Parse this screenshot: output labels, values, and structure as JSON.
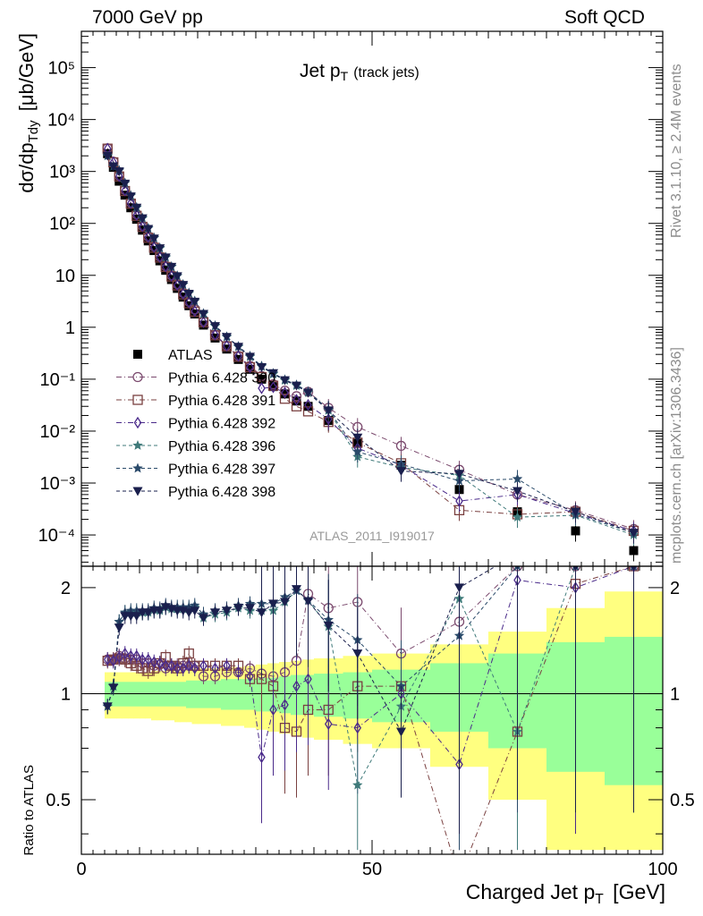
{
  "header": {
    "left": "7000 GeV pp",
    "right": "Soft QCD"
  },
  "side_labels": {
    "rivet": "Rivet 3.1.10, ≥ 2.4M events",
    "mcplots": "mcplots.cern.ch [arXiv:1306.3436]"
  },
  "chart_data": [
    {
      "type": "scatter",
      "title_main": "Jet p",
      "title_sub": "T",
      "title_note": "(track jets)",
      "analysis_label": "ATLAS_2011_I919017",
      "ylabel": "dσ/dp",
      "ylabel_sub": "Tdy",
      "ylabel_unit": "[μb/GeV]",
      "xlabel": "Charged Jet p",
      "xlabel_sub": "T",
      "xlabel_unit": "[GeV]",
      "xlim": [
        0,
        100
      ],
      "ylim": [
        2.5e-05,
        500000
      ],
      "y_scale": "log",
      "y_tick_labels": [
        "10⁻⁴",
        "10⁻³",
        "10⁻²",
        "10⁻¹",
        "1",
        "10",
        "10²",
        "10³",
        "10⁴",
        "10⁵"
      ],
      "x_tick_labels": [
        "0",
        "50",
        "100"
      ],
      "legend_position": "left-middle",
      "x": [
        4.5,
        5.5,
        6.5,
        7.5,
        8.5,
        9.5,
        10.5,
        11.5,
        12.5,
        13.5,
        14.5,
        15.5,
        16.5,
        17.5,
        18.5,
        19.5,
        21,
        23,
        25,
        27,
        29,
        31,
        33,
        35,
        37,
        39,
        42.5,
        47.5,
        55,
        65,
        75,
        85,
        95
      ],
      "series": [
        {
          "name": "ATLAS",
          "color": "#000000",
          "marker": "filled-square",
          "values": [
            2200,
            1200,
            650,
            350,
            200,
            120,
            74,
            46,
            30,
            19,
            12.5,
            8.3,
            5.6,
            3.8,
            2.6,
            1.8,
            1.1,
            0.62,
            0.38,
            0.24,
            0.155,
            0.1,
            0.072,
            0.052,
            0.038,
            0.03,
            0.016,
            0.0058,
            0.0022,
            0.00075,
            0.00028,
            0.00012,
            5e-05
          ]
        },
        {
          "name": "Pythia 6.428 390",
          "color": "#7b4a6e",
          "marker": "open-circle",
          "values": [
            2800,
            1550,
            830,
            440,
            250,
            150,
            90,
            56,
            36,
            23,
            15,
            10,
            6.8,
            4.6,
            3.1,
            2.2,
            1.3,
            0.72,
            0.44,
            0.28,
            0.18,
            0.115,
            0.08,
            0.06,
            0.047,
            0.057,
            0.028,
            0.012,
            0.0052,
            0.0018,
            0.0006,
            0.0003,
            0.00013
          ]
        },
        {
          "name": "Pythia 6.428 391",
          "color": "#7a4040",
          "marker": "open-square",
          "values": [
            2750,
            1500,
            800,
            420,
            240,
            140,
            86,
            53,
            34,
            22,
            14.5,
            9.5,
            6.4,
            4.3,
            2.9,
            2.0,
            1.25,
            0.7,
            0.43,
            0.27,
            0.17,
            0.11,
            0.075,
            0.042,
            0.03,
            0.024,
            0.015,
            0.006,
            0.0024,
            0.0003,
            0.00025,
            0.00028,
            0.00012
          ]
        },
        {
          "name": "Pythia 6.428 392",
          "color": "#4a2a8a",
          "marker": "open-diamond",
          "values": [
            2750,
            1500,
            810,
            430,
            245,
            145,
            88,
            55,
            35,
            22.5,
            14.8,
            9.7,
            6.5,
            4.4,
            3.0,
            2.05,
            1.25,
            0.72,
            0.44,
            0.28,
            0.17,
            0.067,
            0.07,
            0.055,
            0.04,
            0.032,
            0.017,
            0.0047,
            0.0022,
            0.00045,
            0.0006,
            0.00026,
            0.00012
          ]
        },
        {
          "name": "Pythia 6.428 396",
          "color": "#3f7a7a",
          "marker": "star",
          "values": [
            2000,
            1250,
            1050,
            600,
            340,
            200,
            125,
            80,
            52,
            33,
            22,
            14.5,
            9.7,
            6.6,
            4.5,
            3.2,
            1.8,
            1.05,
            0.65,
            0.42,
            0.27,
            0.175,
            0.125,
            0.095,
            0.075,
            0.055,
            0.025,
            0.0032,
            0.002,
            0.0014,
            0.00022,
            0.00024,
            0.0001
          ]
        },
        {
          "name": "Pythia 6.428 397",
          "color": "#2a4a6a",
          "marker": "star",
          "values": [
            2000,
            1250,
            1050,
            600,
            345,
            205,
            128,
            81,
            53,
            34,
            22.5,
            14.8,
            9.8,
            6.7,
            4.6,
            3.2,
            1.85,
            1.08,
            0.66,
            0.43,
            0.28,
            0.18,
            0.13,
            0.098,
            0.078,
            0.058,
            0.026,
            0.004,
            0.0023,
            0.0011,
            0.0012,
            0.00025,
            0.00011
          ]
        },
        {
          "name": "Pythia 6.428 398",
          "color": "#1a1f4d",
          "marker": "filled-triangle-down",
          "values": [
            2000,
            1250,
            1000,
            580,
            330,
            200,
            125,
            78,
            51,
            33,
            22,
            14.5,
            9.6,
            6.5,
            4.4,
            3.1,
            1.8,
            1.05,
            0.65,
            0.42,
            0.27,
            0.17,
            0.13,
            0.095,
            0.075,
            0.055,
            0.025,
            0.0075,
            0.0017,
            0.0015,
            0.0007,
            0.00028,
            0.00011
          ]
        }
      ]
    },
    {
      "type": "line",
      "ylabel": "Ratio to ATLAS",
      "xlim": [
        0,
        100
      ],
      "ylim": [
        0.35,
        2.3
      ],
      "y_scale": "log",
      "y_tick_labels": [
        "0.5",
        "1",
        "2"
      ],
      "x_tick_labels": [
        "0",
        "50",
        "100"
      ],
      "band_x_edges": [
        4,
        5,
        6,
        7,
        8,
        9,
        10,
        11,
        12,
        13,
        14,
        15,
        16,
        17,
        18,
        19,
        20,
        22,
        24,
        26,
        28,
        30,
        32,
        34,
        36,
        38,
        40,
        45,
        50,
        60,
        70,
        80,
        90,
        100
      ],
      "band_inner": [
        0.08,
        0.08,
        0.08,
        0.08,
        0.08,
        0.08,
        0.08,
        0.08,
        0.08,
        0.08,
        0.08,
        0.08,
        0.08,
        0.08,
        0.09,
        0.09,
        0.09,
        0.09,
        0.1,
        0.1,
        0.1,
        0.11,
        0.11,
        0.12,
        0.13,
        0.13,
        0.14,
        0.15,
        0.17,
        0.22,
        0.3,
        0.4,
        0.45
      ],
      "band_outer": [
        0.15,
        0.15,
        0.15,
        0.15,
        0.15,
        0.15,
        0.15,
        0.15,
        0.16,
        0.16,
        0.16,
        0.16,
        0.17,
        0.17,
        0.17,
        0.18,
        0.18,
        0.18,
        0.19,
        0.19,
        0.2,
        0.21,
        0.22,
        0.23,
        0.24,
        0.25,
        0.26,
        0.28,
        0.3,
        0.38,
        0.5,
        0.75,
        0.95
      ],
      "band_colors": {
        "outer": "#ffff80",
        "inner": "#99ff99"
      },
      "x": [
        4.5,
        5.5,
        6.5,
        7.5,
        8.5,
        9.5,
        10.5,
        11.5,
        12.5,
        13.5,
        14.5,
        15.5,
        16.5,
        17.5,
        18.5,
        19.5,
        21,
        23,
        25,
        27,
        29,
        31,
        33,
        35,
        37,
        39,
        42.5,
        47.5,
        55,
        65,
        75,
        85,
        95
      ],
      "series": [
        {
          "name": "Pythia 6.428 390",
          "color": "#7b4a6e",
          "marker": "open-circle",
          "values": [
            1.25,
            1.25,
            1.28,
            1.26,
            1.25,
            1.25,
            1.22,
            1.22,
            1.2,
            1.21,
            1.18,
            1.2,
            1.2,
            1.2,
            1.2,
            1.2,
            1.12,
            1.12,
            1.15,
            1.15,
            1.18,
            1.14,
            1.12,
            1.15,
            1.24,
            1.92,
            1.75,
            1.82,
            1.3,
            1.6,
            2.3,
            2.3,
            2.3
          ]
        },
        {
          "name": "Pythia 6.428 391",
          "color": "#7a4040",
          "marker": "open-square",
          "values": [
            1.24,
            1.25,
            1.26,
            1.25,
            1.22,
            1.2,
            1.18,
            1.16,
            1.18,
            1.22,
            1.27,
            1.2,
            1.18,
            1.22,
            1.3,
            1.2,
            1.2,
            1.2,
            1.2,
            1.2,
            1.1,
            1.1,
            1.05,
            0.8,
            0.78,
            0.9,
            0.9,
            1.05,
            1.05,
            0.3,
            0.78,
            2.05,
            2.3
          ]
        },
        {
          "name": "Pythia 6.428 392",
          "color": "#4a2a8a",
          "marker": "open-diamond",
          "values": [
            1.25,
            1.24,
            1.27,
            1.3,
            1.28,
            1.28,
            1.25,
            1.25,
            1.23,
            1.22,
            1.2,
            1.2,
            1.18,
            1.18,
            1.2,
            1.18,
            1.2,
            1.18,
            1.2,
            1.15,
            1.12,
            0.66,
            0.9,
            0.93,
            1.05,
            1.1,
            0.82,
            0.8,
            1.0,
            0.63,
            2.1,
            2.0,
            2.3
          ]
        },
        {
          "name": "Pythia 6.428 396",
          "color": "#3f7a7a",
          "marker": "star",
          "values": [
            0.92,
            1.05,
            1.6,
            1.7,
            1.7,
            1.7,
            1.7,
            1.7,
            1.73,
            1.72,
            1.76,
            1.74,
            1.74,
            1.74,
            1.74,
            1.76,
            1.64,
            1.68,
            1.7,
            1.75,
            1.72,
            1.72,
            1.72,
            1.82,
            1.96,
            1.84,
            1.55,
            0.55,
            0.92,
            1.86,
            0.78,
            2.3,
            2.3
          ]
        },
        {
          "name": "Pythia 6.428 397",
          "color": "#2a4a6a",
          "marker": "star",
          "values": [
            0.92,
            1.05,
            1.6,
            1.7,
            1.72,
            1.72,
            1.72,
            1.72,
            1.75,
            1.74,
            1.78,
            1.76,
            1.76,
            1.76,
            1.76,
            1.78,
            1.68,
            1.72,
            1.74,
            1.78,
            1.8,
            1.8,
            1.8,
            1.88,
            1.96,
            1.84,
            1.62,
            1.42,
            1.05,
            1.46,
            2.3,
            2.3,
            2.3
          ]
        },
        {
          "name": "Pythia 6.428 398",
          "color": "#1a1f4d",
          "marker": "filled-triangle-down",
          "values": [
            0.92,
            1.04,
            1.54,
            1.66,
            1.66,
            1.66,
            1.7,
            1.7,
            1.72,
            1.72,
            1.76,
            1.74,
            1.72,
            1.72,
            1.7,
            1.72,
            1.64,
            1.7,
            1.72,
            1.75,
            1.75,
            1.7,
            1.8,
            1.82,
            1.98,
            1.83,
            1.56,
            1.3,
            0.78,
            2.0,
            2.5,
            2.3,
            2.3
          ]
        }
      ]
    }
  ]
}
